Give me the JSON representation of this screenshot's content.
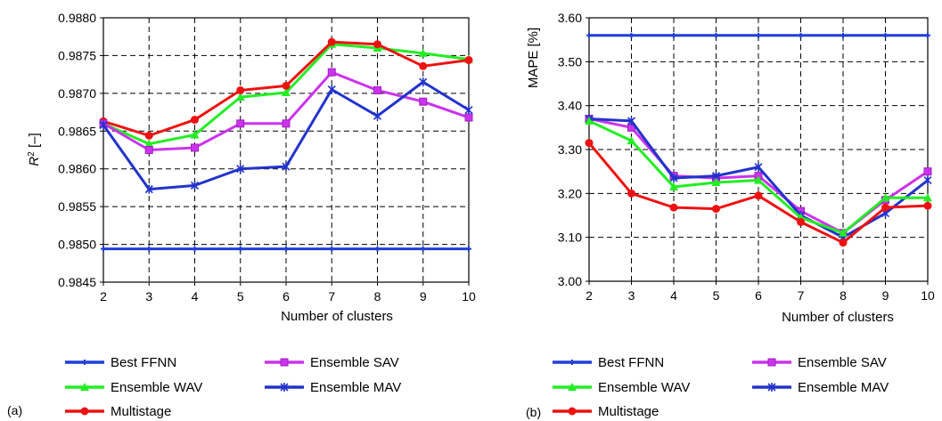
{
  "colors": {
    "Best FFNN": "#1f3fd8",
    "Ensemble SAV": "#cc33ee",
    "Ensemble WAV": "#22ee22",
    "Ensemble MAV": "#2233cc",
    "Multistage": "#ee1111"
  },
  "chart_data": [
    {
      "type": "line",
      "panel_label": "(a)",
      "xlabel": "Number of clusters",
      "ylabel_main": "R",
      "ylabel_sup": "2",
      "ylabel_rest": " [–]",
      "categories": [
        2,
        3,
        4,
        5,
        6,
        7,
        8,
        9,
        10
      ],
      "ylim": [
        0.9845,
        0.988
      ],
      "yticks": [
        "0.9845",
        "0.9850",
        "0.9855",
        "0.9860",
        "0.9865",
        "0.9870",
        "0.9875",
        "0.9880"
      ],
      "grid": true,
      "legend_position": "bottom",
      "series": [
        {
          "name": "Best FFNN",
          "values": [
            0.98494,
            0.98494,
            0.98494,
            0.98494,
            0.98494,
            0.98494,
            0.98494,
            0.98494,
            0.98494
          ]
        },
        {
          "name": "Ensemble WAV",
          "values": [
            0.9866,
            0.98633,
            0.98645,
            0.98695,
            0.98701,
            0.98765,
            0.9876,
            0.98753,
            0.98745
          ]
        },
        {
          "name": "Multistage",
          "values": [
            0.98663,
            0.98644,
            0.98665,
            0.98704,
            0.9871,
            0.98768,
            0.98765,
            0.98736,
            0.98744
          ]
        },
        {
          "name": "Ensemble SAV",
          "values": [
            0.9866,
            0.98625,
            0.98628,
            0.9866,
            0.9866,
            0.98728,
            0.98704,
            0.98689,
            0.98668
          ]
        },
        {
          "name": "Ensemble MAV",
          "values": [
            0.98658,
            0.98573,
            0.98578,
            0.986,
            0.98603,
            0.98705,
            0.9867,
            0.98715,
            0.98678
          ]
        }
      ]
    },
    {
      "type": "line",
      "panel_label": "(b)",
      "xlabel": "Number of clusters",
      "ylabel": "MAPE [%]",
      "categories": [
        2,
        3,
        4,
        5,
        6,
        7,
        8,
        9,
        10
      ],
      "ylim": [
        3.0,
        3.6
      ],
      "yticks": [
        "3.00",
        "3.10",
        "3.20",
        "3.30",
        "3.40",
        "3.50",
        "3.60"
      ],
      "grid": true,
      "legend_position": "bottom",
      "series": [
        {
          "name": "Best FFNN",
          "values": [
            3.56,
            3.56,
            3.56,
            3.56,
            3.56,
            3.56,
            3.56,
            3.56,
            3.56
          ]
        },
        {
          "name": "Ensemble SAV",
          "values": [
            3.37,
            3.35,
            3.24,
            3.235,
            3.24,
            3.16,
            3.11,
            3.185,
            3.25
          ]
        },
        {
          "name": "Ensemble MAV",
          "values": [
            3.37,
            3.365,
            3.235,
            3.24,
            3.26,
            3.15,
            3.1,
            3.155,
            3.23
          ]
        },
        {
          "name": "Ensemble WAV",
          "values": [
            3.365,
            3.32,
            3.215,
            3.225,
            3.23,
            3.145,
            3.11,
            3.19,
            3.19
          ]
        },
        {
          "name": "Multistage",
          "values": [
            3.315,
            3.2,
            3.168,
            3.165,
            3.195,
            3.135,
            3.088,
            3.168,
            3.172
          ]
        }
      ]
    }
  ],
  "legend": [
    "Best FFNN",
    "Ensemble SAV",
    "Ensemble WAV",
    "Ensemble MAV",
    "Multistage"
  ]
}
